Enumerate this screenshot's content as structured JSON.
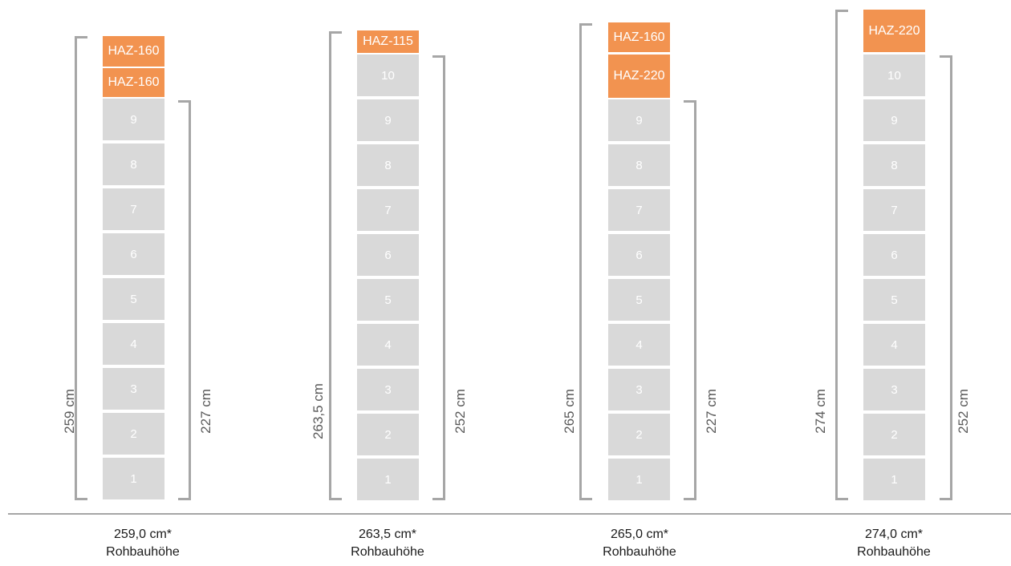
{
  "stacks": [
    {
      "blocks": [
        "HAZ-160",
        "HAZ-160",
        "9",
        "8",
        "7",
        "6",
        "5",
        "4",
        "3",
        "2",
        "1"
      ],
      "haz_count": 2,
      "total_height_label": "259 cm",
      "stack_height_label": "227 cm",
      "caption_value": "259,0 cm*",
      "caption_label": "Rohbauhöhe"
    },
    {
      "blocks": [
        "HAZ-115",
        "10",
        "9",
        "8",
        "7",
        "6",
        "5",
        "4",
        "3",
        "2",
        "1"
      ],
      "haz_count": 1,
      "total_height_label": "263,5 cm",
      "stack_height_label": "252 cm",
      "caption_value": "263,5 cm*",
      "caption_label": "Rohbauhöhe"
    },
    {
      "blocks": [
        "HAZ-160",
        "HAZ-220",
        "9",
        "8",
        "7",
        "6",
        "5",
        "4",
        "3",
        "2",
        "1"
      ],
      "haz_count": 2,
      "total_height_label": "265 cm",
      "stack_height_label": "227 cm",
      "caption_value": "265,0 cm*",
      "caption_label": "Rohbauhöhe"
    },
    {
      "blocks": [
        "HAZ-220",
        "10",
        "9",
        "8",
        "7",
        "6",
        "5",
        "4",
        "3",
        "2",
        "1"
      ],
      "haz_count": 1,
      "total_height_label": "274 cm",
      "stack_height_label": "252 cm",
      "caption_value": "274,0 cm*",
      "caption_label": "Rohbauhöhe"
    }
  ],
  "colors": {
    "haz_block": "#f29350",
    "step_block": "#d9d9d9",
    "bracket": "#a6a6a6"
  }
}
